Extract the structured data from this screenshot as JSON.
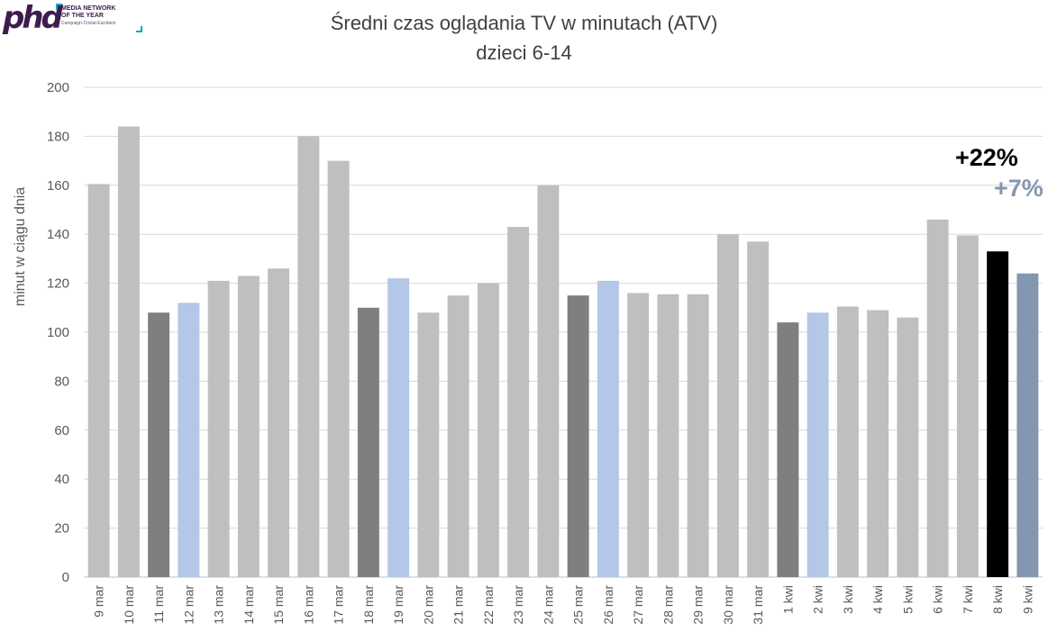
{
  "logo": {
    "brand": "phd",
    "line1": "MEDIA NETWORK",
    "line2": "OF THE YEAR",
    "line3": "Campaign·Cristal·Eurobest"
  },
  "chart_data": {
    "type": "bar",
    "title": "Średni czas oglądania TV w minutach (ATV)",
    "subtitle": "dzieci 6-14",
    "ylabel": "minut w ciągu dnia",
    "xlabel": "",
    "ylim": [
      0,
      200
    ],
    "yticks": [
      0,
      20,
      40,
      60,
      80,
      100,
      120,
      140,
      160,
      180,
      200
    ],
    "grid": true,
    "categories": [
      "9 mar",
      "10 mar",
      "11 mar",
      "12 mar",
      "13 mar",
      "14 mar",
      "15 mar",
      "16 mar",
      "17 mar",
      "18 mar",
      "19 mar",
      "20 mar",
      "21 mar",
      "22 mar",
      "23 mar",
      "24 mar",
      "25 mar",
      "26 mar",
      "27 mar",
      "28 mar",
      "29 mar",
      "30 mar",
      "31 mar",
      "1 kwi",
      "2 kwi",
      "3 kwi",
      "4 kwi",
      "5 kwi",
      "6 kwi",
      "7 kwi",
      "8 kwi",
      "9 kwi"
    ],
    "values": [
      160.5,
      184,
      108,
      112,
      121,
      123,
      126,
      180,
      170,
      110,
      122,
      108,
      115,
      120,
      143,
      160,
      115,
      121,
      116,
      115.5,
      115.5,
      140,
      137,
      104,
      108,
      110.5,
      109,
      106,
      146,
      139.5,
      133,
      124
    ],
    "bar_colors": [
      "#bfbfbf",
      "#bfbfbf",
      "#7f7f7f",
      "#b4c7e7",
      "#bfbfbf",
      "#bfbfbf",
      "#bfbfbf",
      "#bfbfbf",
      "#bfbfbf",
      "#7f7f7f",
      "#b4c7e7",
      "#bfbfbf",
      "#bfbfbf",
      "#bfbfbf",
      "#bfbfbf",
      "#bfbfbf",
      "#7f7f7f",
      "#b4c7e7",
      "#bfbfbf",
      "#bfbfbf",
      "#bfbfbf",
      "#bfbfbf",
      "#bfbfbf",
      "#7f7f7f",
      "#b4c7e7",
      "#bfbfbf",
      "#bfbfbf",
      "#bfbfbf",
      "#bfbfbf",
      "#bfbfbf",
      "#000000",
      "#8497b0"
    ],
    "annotations": [
      {
        "text": "+22%",
        "color": "#000000"
      },
      {
        "text": "+7%",
        "color": "#8497b0"
      }
    ]
  }
}
